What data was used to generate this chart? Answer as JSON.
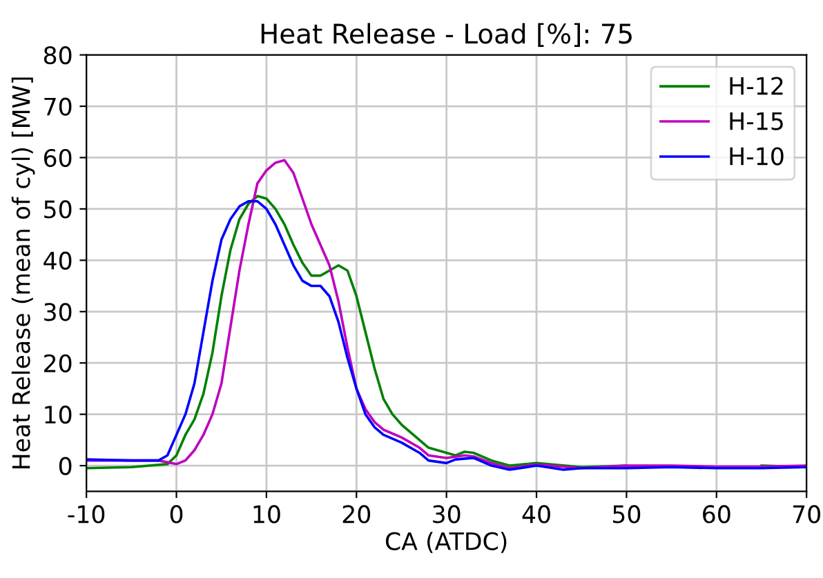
{
  "chart_data": {
    "type": "line",
    "title": "Heat Release - Load [%]: 75",
    "xlabel": "CA (ATDC)",
    "ylabel": "Heat Release (mean of cyl) [MW]",
    "xlim": [
      -10,
      70
    ],
    "ylim": [
      -5,
      80
    ],
    "xticks": [
      -10,
      0,
      10,
      20,
      30,
      40,
      50,
      60,
      70
    ],
    "yticks": [
      0,
      10,
      20,
      30,
      40,
      50,
      60,
      70,
      80
    ],
    "grid": true,
    "legend": "top right",
    "marker": "none",
    "line_style": "solid",
    "series": [
      {
        "name": "H-12",
        "color": "#008000",
        "x": [
          -10,
          -5,
          -1,
          0,
          1,
          2,
          3,
          4,
          5,
          6,
          7,
          8,
          9,
          10,
          11,
          12,
          13,
          14,
          15,
          16,
          17,
          18,
          19,
          20,
          21,
          22,
          23,
          24,
          25,
          27,
          28,
          30,
          31,
          32,
          33,
          35,
          37,
          40,
          45,
          50,
          55,
          60,
          65,
          70
        ],
        "values": [
          -0.5,
          -0.3,
          0.3,
          2,
          6,
          9,
          14,
          22,
          33,
          42,
          48,
          51,
          52.5,
          52,
          50,
          47,
          43,
          39.5,
          37,
          37,
          38,
          39,
          38,
          33,
          26,
          19,
          13,
          10,
          8,
          5,
          3.5,
          2.5,
          2,
          2.7,
          2.5,
          1,
          0,
          0.5,
          -0.3,
          0,
          null,
          null,
          0,
          -0.3
        ]
      },
      {
        "name": "H-15",
        "color": "#bf00bf",
        "x": [
          -10,
          -5,
          -2,
          0,
          1,
          2,
          3,
          4,
          5,
          6,
          7,
          8,
          9,
          10,
          11,
          12,
          13,
          14,
          15,
          16,
          17,
          18,
          19,
          20,
          21,
          22,
          23,
          25,
          27,
          28,
          30,
          32,
          33,
          35,
          37,
          40,
          45,
          50,
          55,
          60,
          65,
          70
        ],
        "values": [
          1,
          1,
          1,
          0.3,
          1,
          3,
          6,
          10,
          16,
          27,
          38,
          47,
          55,
          57.5,
          59,
          59.5,
          57,
          52,
          47,
          43,
          39,
          32,
          23,
          15,
          11,
          8.5,
          7,
          5.5,
          3.5,
          2,
          1.5,
          2,
          1.8,
          0.5,
          -0.5,
          0.2,
          -0.5,
          0,
          0,
          -0.2,
          -0.2,
          0
        ]
      },
      {
        "name": "H-10",
        "color": "#0000ff",
        "x": [
          -10,
          -5,
          -2,
          -1,
          0,
          1,
          2,
          3,
          4,
          5,
          6,
          7,
          8,
          9,
          10,
          11,
          12,
          13,
          14,
          15,
          16,
          17,
          18,
          19,
          20,
          21,
          22,
          23,
          25,
          27,
          28,
          30,
          31,
          33,
          35,
          37,
          40,
          43,
          45,
          50,
          55,
          60,
          65,
          70
        ],
        "values": [
          1.2,
          1,
          1,
          2,
          6,
          10,
          16,
          26,
          36,
          44,
          48,
          50.5,
          51.5,
          51.5,
          50,
          47,
          43,
          39,
          36,
          35,
          35,
          33,
          28,
          21,
          15,
          10,
          7.5,
          6,
          4.5,
          2.5,
          1,
          0.5,
          1.2,
          1.5,
          0,
          -0.8,
          0,
          -0.8,
          -0.5,
          -0.5,
          -0.3,
          -0.5,
          -0.5,
          -0.3
        ]
      }
    ]
  }
}
